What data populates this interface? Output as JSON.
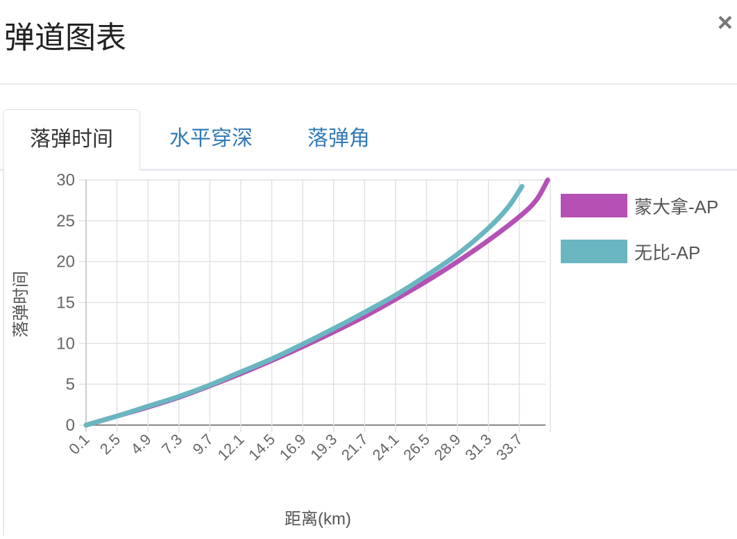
{
  "dialog": {
    "title": "弹道图表",
    "close_label": "×"
  },
  "tabs": [
    {
      "label": "落弹时间",
      "active": true
    },
    {
      "label": "水平穿深",
      "active": false
    },
    {
      "label": "落弹角",
      "active": false
    }
  ],
  "chart_data": {
    "type": "line",
    "xlabel": "距离(km)",
    "ylabel": "落弹时间",
    "x_tick_labels": [
      "0.1",
      "2.5",
      "4.9",
      "7.3",
      "9.7",
      "12.1",
      "14.5",
      "16.9",
      "19.3",
      "21.7",
      "24.1",
      "26.5",
      "28.9",
      "31.3",
      "33.7"
    ],
    "ylim": [
      0,
      30
    ],
    "y_ticks": [
      0,
      5,
      10,
      15,
      20,
      25,
      30
    ],
    "grid": true,
    "legend_position": "right",
    "series": [
      {
        "name": "蒙大拿-AP",
        "color": "#b550b5",
        "x": [
          0.1,
          2.5,
          4.9,
          7.3,
          9.7,
          12.1,
          14.5,
          16.9,
          19.3,
          21.7,
          24.1,
          26.5,
          28.9,
          31.3,
          33.7,
          35.0,
          35.9
        ],
        "y": [
          0,
          1.1,
          2.2,
          3.4,
          4.8,
          6.3,
          7.9,
          9.6,
          11.4,
          13.3,
          15.4,
          17.6,
          20.0,
          22.6,
          25.5,
          27.5,
          30.0
        ]
      },
      {
        "name": "无比-AP",
        "color": "#6ab6c0",
        "x": [
          0.1,
          2.5,
          4.9,
          7.3,
          9.7,
          12.1,
          14.5,
          16.9,
          19.3,
          21.7,
          24.1,
          26.5,
          28.9,
          31.3,
          32.8,
          33.9
        ],
        "y": [
          0,
          1.1,
          2.3,
          3.5,
          4.9,
          6.5,
          8.1,
          9.9,
          11.8,
          13.8,
          15.9,
          18.3,
          20.9,
          24.1,
          26.6,
          29.2
        ]
      }
    ]
  }
}
